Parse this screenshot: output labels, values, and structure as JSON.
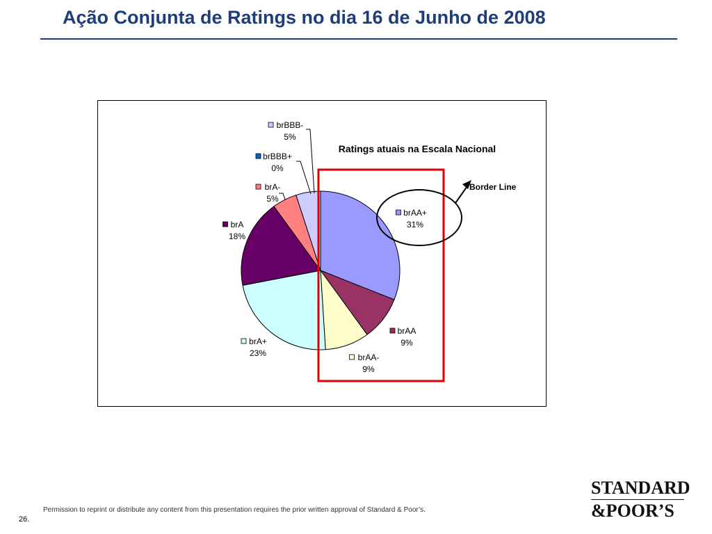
{
  "slide": {
    "title": "Ação Conjunta de Ratings no dia 16 de Junho de 2008",
    "footer_note": "Permission to reprint or distribute any content from this presentation requires the prior written approval of Standard & Poor’s.",
    "page_number": "26.",
    "logo_line1": "STANDARD",
    "logo_line2": "&POOR’S"
  },
  "chart_data": {
    "type": "pie",
    "title": "Ratings atuais na Escala Nacional",
    "slices": [
      {
        "label": "brAA+",
        "value": 31,
        "pct_label": "31%",
        "color": "#9999ff"
      },
      {
        "label": "brAA",
        "value": 9,
        "pct_label": "9%",
        "color": "#993366"
      },
      {
        "label": "brAA-",
        "value": 9,
        "pct_label": "9%",
        "color": "#ffffcc"
      },
      {
        "label": "brA+",
        "value": 23,
        "pct_label": "23%",
        "color": "#ccffff"
      },
      {
        "label": "brA",
        "value": 18,
        "pct_label": "18%",
        "color": "#660066"
      },
      {
        "label": "brA-",
        "value": 5,
        "pct_label": "5%",
        "color": "#ff8080"
      },
      {
        "label": "brBBB+",
        "value": 0,
        "pct_label": "0%",
        "color": "#0066cc"
      },
      {
        "label": "brBBB-",
        "value": 5,
        "pct_label": "5%",
        "color": "#ccccff"
      }
    ],
    "annotation": "Border Line",
    "highlight_color": "#e00000"
  }
}
